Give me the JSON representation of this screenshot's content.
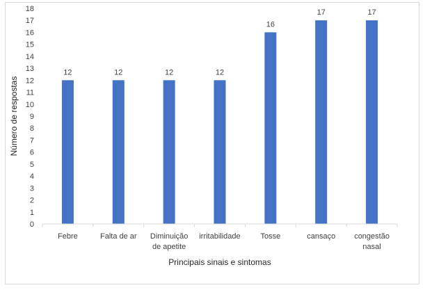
{
  "chart_data": {
    "type": "bar",
    "categories": [
      [
        "Febre"
      ],
      [
        "Falta de ar"
      ],
      [
        "Diminuição",
        "de apetite"
      ],
      [
        "irritabilidade"
      ],
      [
        "Tosse"
      ],
      [
        "cansaço"
      ],
      [
        "congestão",
        "nasal"
      ]
    ],
    "values": [
      12,
      12,
      12,
      12,
      16,
      17,
      17
    ],
    "title": "",
    "xlabel": "Principais sinais e sintomas",
    "ylabel": "Número de respostas",
    "ylim": [
      0,
      18
    ],
    "yticks": [
      0,
      1,
      2,
      3,
      4,
      5,
      6,
      7,
      8,
      9,
      10,
      11,
      12,
      13,
      14,
      15,
      16,
      17,
      18
    ],
    "grid": false,
    "legend": "none",
    "bar_color": "#4472C4",
    "axis_color": "#d9d9d9"
  }
}
